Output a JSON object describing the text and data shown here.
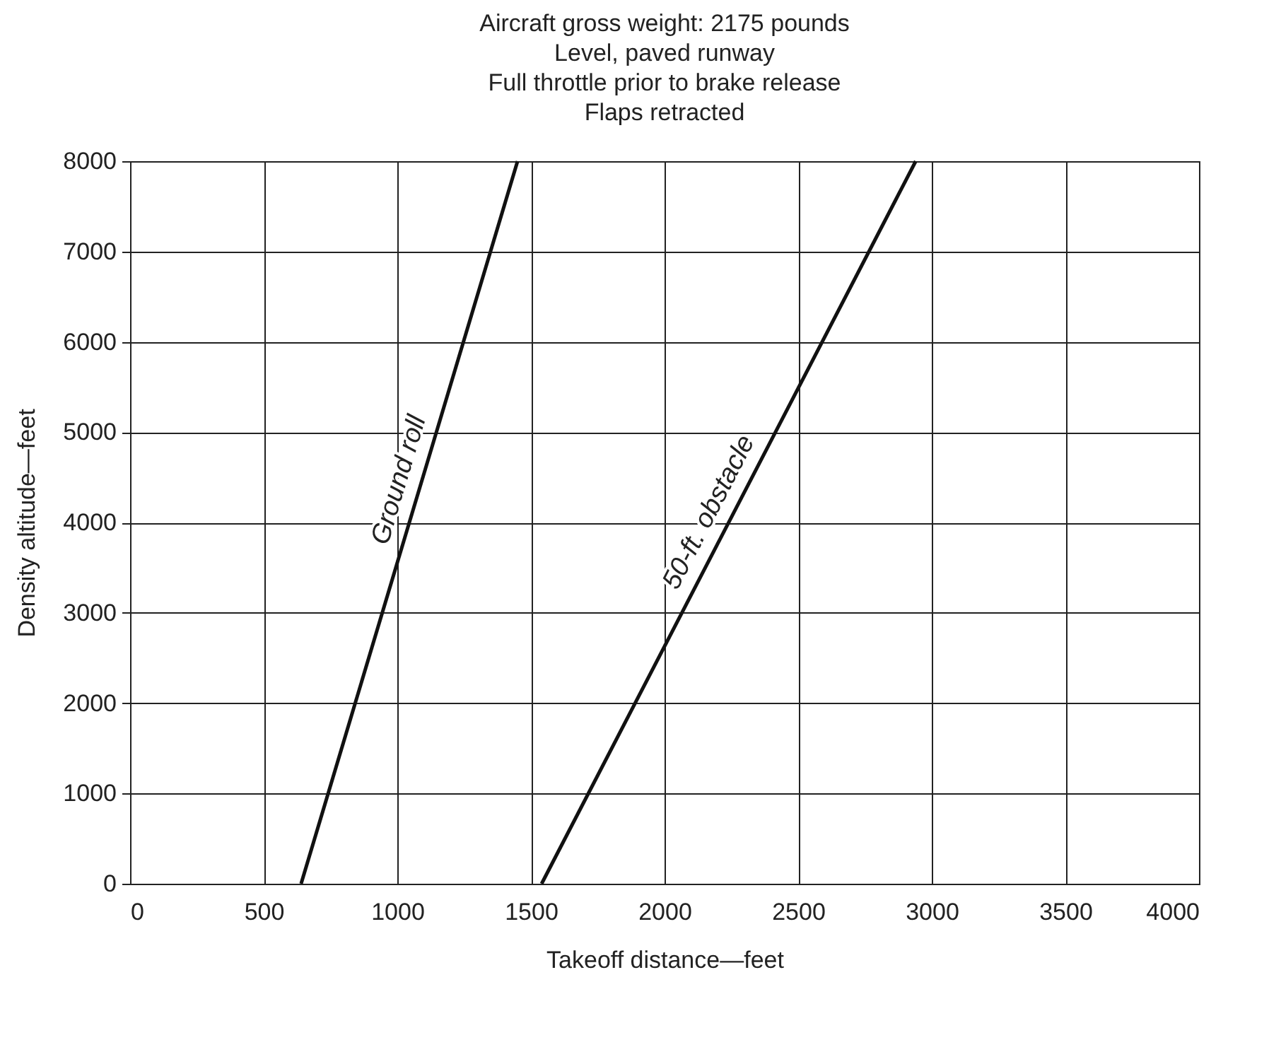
{
  "chart_data": {
    "type": "line",
    "title": "Aircraft gross weight: 2175 pounds\nLevel, paved runway\nFull throttle prior to brake release\nFlaps retracted",
    "xlabel": "Takeoff distance—feet",
    "ylabel": "Density altitude—feet",
    "series": [
      {
        "name": "Ground roll",
        "color": "#111111",
        "x": [
          640,
          1450
        ],
        "values": [
          0,
          8000
        ]
      },
      {
        "name": "50-ft. obstacle",
        "color": "#111111",
        "x": [
          1540,
          2940
        ],
        "values": [
          0,
          8000
        ]
      }
    ],
    "xlim": [
      0,
      4000
    ],
    "xticks": [
      0,
      500,
      1000,
      1500,
      2000,
      2500,
      3000,
      3500,
      4000
    ],
    "ylim": [
      0,
      8000
    ],
    "yticks": [
      0,
      1000,
      2000,
      3000,
      4000,
      5000,
      6000,
      7000,
      8000
    ],
    "grid": true,
    "legend": false,
    "marker": "none",
    "line_style": "solid"
  }
}
